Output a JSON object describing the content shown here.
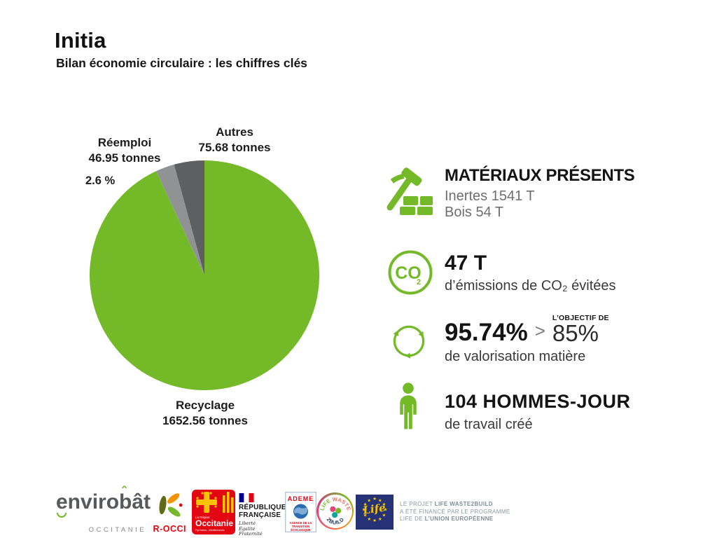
{
  "header": {
    "title": "Initia",
    "subtitle": "Bilan économie circulaire : les chiffres clés"
  },
  "chart_data": {
    "type": "pie",
    "unit": "tonnes",
    "legend_position": "labels-around-pie",
    "slices": [
      {
        "label": "Recyclage",
        "sublabel": "1652.56 tonnes",
        "value": 1652.56,
        "color": "#74b928"
      },
      {
        "label": "Réemploi",
        "sublabel": "46.95 tonnes",
        "value": 46.95,
        "color": "#909294",
        "annotation": "2.6 %"
      },
      {
        "label": "Autres",
        "sublabel": "75.68 tonnes",
        "value": 75.68,
        "color": "#5d5f61"
      }
    ]
  },
  "stats": {
    "materials": {
      "title": "MATÉRIAUX PRÉSENTS",
      "line1": "Inertes 1541 T",
      "line2": "Bois 54 T"
    },
    "co2": {
      "icon_text": "CO",
      "icon_sub": "2",
      "value": "47 T",
      "line": "d’émissions de CO₂ évitées"
    },
    "valorisation": {
      "value": "95.74%",
      "comparator": ">",
      "objective_label": "L’OBJECTIF DE",
      "objective": "85%",
      "line": "de valorisation matière"
    },
    "jobs": {
      "value": "104 HOMMES-JOUR",
      "line": "de travail créé"
    }
  },
  "footer": {
    "envirobat": {
      "name": "envirobât",
      "accent": "ˆ",
      "region": "OCCITANIE",
      "brand": "R-OCCI"
    },
    "occitanie": {
      "small": "La Région",
      "name": "Occitanie",
      "sub": "Pyrénées - Méditerranée"
    },
    "republique": {
      "line1": "RÉPUBLIQUE",
      "line2": "FRANÇAISE",
      "motto1": "Liberté",
      "motto2": "Égalité",
      "motto3": "Fraternité"
    },
    "ademe": {
      "name": "ADEME",
      "t1": "AGENCE DE LA",
      "t2": "TRANSITION",
      "t3": "ÉCOLOGIQUE"
    },
    "waste2build": {
      "arc_top_1": "LIFE",
      "arc_top_2": " WASTE",
      "arc_bottom": "2BUILD"
    },
    "life": {
      "name": "Life"
    },
    "funding": {
      "l1a": "LE PROJET ",
      "l1b": "LIFE WASTE2BUILD",
      "l2": "A ÉTÉ FINANCÉ PAR LE PROGRAMME",
      "l3a": "LIFE DE ",
      "l3b": "L’UNION EUROPÉENNE"
    }
  }
}
